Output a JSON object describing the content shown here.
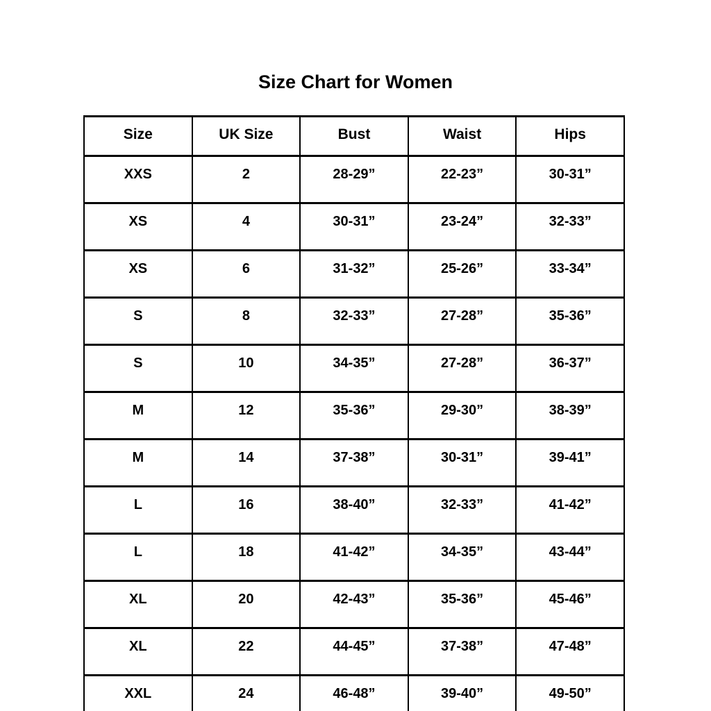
{
  "page": {
    "background": "#ffffff",
    "title": "Size Chart for Women"
  },
  "colors": {
    "text": "#000000",
    "border": "#000000",
    "background": "#ffffff"
  },
  "chart_data": {
    "type": "table",
    "title": "Size Chart for Women",
    "columns": [
      "Size",
      "UK Size",
      "Bust",
      "Waist",
      "Hips"
    ],
    "rows": [
      [
        "XXS",
        "2",
        "28-29”",
        "22-23”",
        "30-31”"
      ],
      [
        "XS",
        "4",
        "30-31”",
        "23-24”",
        "32-33”"
      ],
      [
        "XS",
        "6",
        "31-32”",
        "25-26”",
        "33-34”"
      ],
      [
        "S",
        "8",
        "32-33”",
        "27-28”",
        "35-36”"
      ],
      [
        "S",
        "10",
        "34-35”",
        "27-28”",
        "36-37”"
      ],
      [
        "M",
        "12",
        "35-36”",
        "29-30”",
        "38-39”"
      ],
      [
        "M",
        "14",
        "37-38”",
        "30-31”",
        "39-41”"
      ],
      [
        "L",
        "16",
        "38-40”",
        "32-33”",
        "41-42”"
      ],
      [
        "L",
        "18",
        "41-42”",
        "34-35”",
        "43-44”"
      ],
      [
        "XL",
        "20",
        "42-43”",
        "35-36”",
        "45-46”"
      ],
      [
        "XL",
        "22",
        "44-45”",
        "37-38”",
        "47-48”"
      ],
      [
        "XXL",
        "24",
        "46-48”",
        "39-40”",
        "49-50”"
      ]
    ],
    "layout": {
      "grid": true,
      "header_row": true,
      "text_align": "center"
    }
  }
}
